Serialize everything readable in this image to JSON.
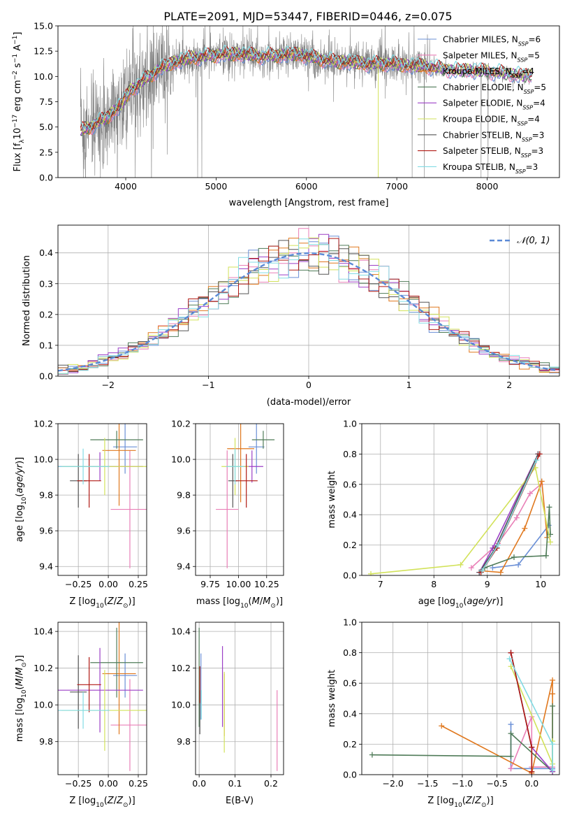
{
  "figure_title": "PLATE=2091, MJD=53447, FIBERID=0446, z=0.075",
  "colors": {
    "chabrier_miles": "#6a8fd6",
    "salpeter_miles": "#e97fb7",
    "kroupa_miles": "#e0781e",
    "chabrier_elodie": "#4f7b58",
    "salpeter_elodie": "#9b3fc6",
    "kroupa_elodie": "#d2e25a",
    "chabrier_stelib": "#555555",
    "salpeter_stelib": "#b11a14",
    "kroupa_stelib": "#82dbe4",
    "data": "#808080"
  },
  "chart_data": [
    {
      "id": "spectrum",
      "type": "line",
      "xlabel": "wavelength [Angstrom, rest frame]",
      "ylabel": "Flux [f_λ10^-17 erg cm^-2 s^-1 A^-1]",
      "xlim": [
        3250,
        8800
      ],
      "ylim": [
        0,
        15
      ],
      "xticks": [
        4000,
        5000,
        6000,
        7000,
        8000
      ],
      "yticks": [
        0.0,
        2.5,
        5.0,
        7.5,
        10.0,
        12.5,
        15.0
      ],
      "grid": false,
      "legend_position": "top-right",
      "series": [
        {
          "name": "Chabrier MILES, N_SSP=6",
          "key": "chabrier_miles"
        },
        {
          "name": "Salpeter MILES, N_SSP=5",
          "key": "salpeter_miles"
        },
        {
          "name": "Kroupa MILES, N_SSP=4",
          "key": "kroupa_miles"
        },
        {
          "name": "Chabrier ELODIE, N_SSP=5",
          "key": "chabrier_elodie"
        },
        {
          "name": "Salpeter ELODIE, N_SSP=4",
          "key": "salpeter_elodie"
        },
        {
          "name": "Kroupa ELODIE, N_SSP=4",
          "key": "kroupa_elodie"
        },
        {
          "name": "Chabrier STELIB, N_SSP=3",
          "key": "chabrier_stelib"
        },
        {
          "name": "Salpeter STELIB, N_SSP=3",
          "key": "salpeter_stelib"
        },
        {
          "name": "Kroupa STELIB, N_SSP=3",
          "key": "kroupa_stelib"
        }
      ],
      "model_curve": {
        "x": [
          3500,
          3650,
          3800,
          3950,
          4050,
          4200,
          4350,
          4500,
          4700,
          4900,
          5100,
          5300,
          5500,
          5700,
          5900,
          6100,
          6300,
          6500,
          6700,
          6900,
          7100,
          7300,
          7400,
          7600,
          7800,
          8000,
          8200,
          8500
        ],
        "y": [
          4.6,
          5.2,
          6.0,
          7.2,
          8.6,
          9.6,
          10.6,
          11.3,
          11.8,
          12.0,
          12.2,
          12.2,
          12.0,
          12.1,
          12.2,
          11.8,
          11.5,
          11.4,
          11.2,
          11.3,
          11.1,
          11.0,
          10.9,
          10.6,
          10.6,
          10.5,
          10.3,
          10.0
        ]
      }
    },
    {
      "id": "residuals",
      "type": "histogram",
      "xlabel": "(data-model)/error",
      "ylabel": "Normed distribution",
      "xlim": [
        -2.5,
        2.5
      ],
      "ylim": [
        0,
        0.49
      ],
      "xticks": [
        -2,
        -1,
        0,
        1,
        2
      ],
      "yticks": [
        0.0,
        0.1,
        0.2,
        0.3,
        0.4
      ],
      "grid": true,
      "legend_position": "top-right",
      "reference": {
        "name": "𝒩(0, 1)",
        "mean": 0,
        "sigma": 1
      },
      "bin_width": 0.1
    },
    {
      "id": "age_vs_Z",
      "type": "errorbar",
      "xlabel": "Z [log10(Z/Z⊙)]",
      "ylabel": "age [log10(age/yr)]",
      "xlim": [
        -0.42,
        0.32
      ],
      "ylim": [
        9.35,
        10.2
      ],
      "xticks": [
        -0.25,
        0.0,
        0.25
      ],
      "yticks": [
        9.4,
        9.6,
        9.8,
        10.0,
        10.2
      ],
      "points": [
        {
          "key": "chabrier_miles",
          "x": 0.14,
          "y": 10.07,
          "xerr": 0.1,
          "yerr": 0.15
        },
        {
          "key": "salpeter_miles",
          "x": 0.18,
          "y": 9.72,
          "xerr": 0.16,
          "yerr": 0.33
        },
        {
          "key": "kroupa_miles",
          "x": 0.09,
          "y": 10.05,
          "xerr": 0.14,
          "yerr": 0.31
        },
        {
          "key": "chabrier_elodie",
          "x": 0.07,
          "y": 10.11,
          "xerr": 0.22,
          "yerr": 0.05
        },
        {
          "key": "salpeter_elodie",
          "x": -0.07,
          "y": 9.96,
          "xerr": 0.36,
          "yerr": 0.08
        },
        {
          "key": "kroupa_elodie",
          "x": -0.03,
          "y": 9.96,
          "xerr": 0.36,
          "yerr": 0.16
        },
        {
          "key": "chabrier_stelib",
          "x": -0.25,
          "y": 9.88,
          "xerr": 0.07,
          "yerr": 0.15
        },
        {
          "key": "salpeter_stelib",
          "x": -0.16,
          "y": 9.88,
          "xerr": 0.1,
          "yerr": 0.15
        },
        {
          "key": "kroupa_stelib",
          "x": -0.21,
          "y": 9.96,
          "xerr": 0.22,
          "yerr": 0.1
        }
      ]
    },
    {
      "id": "age_vs_mass",
      "type": "errorbar",
      "xlabel": "mass [log10(M/M⊙)]",
      "ylabel": "",
      "xlim": [
        9.62,
        10.4
      ],
      "ylim": [
        9.35,
        10.2
      ],
      "xticks": [
        9.75,
        10.0,
        10.25
      ],
      "yticks": [
        9.4,
        9.6,
        9.8,
        10.0,
        10.2
      ],
      "points": [
        {
          "key": "chabrier_miles",
          "x": 10.16,
          "y": 10.07,
          "xerr": 0.07,
          "yerr": 0.15
        },
        {
          "key": "salpeter_miles",
          "x": 9.9,
          "y": 9.72,
          "xerr": 0.1,
          "yerr": 0.33
        },
        {
          "key": "kroupa_miles",
          "x": 10.02,
          "y": 10.06,
          "xerr": 0.12,
          "yerr": 0.3
        },
        {
          "key": "chabrier_elodie",
          "x": 10.22,
          "y": 10.11,
          "xerr": 0.1,
          "yerr": 0.05
        },
        {
          "key": "salpeter_elodie",
          "x": 10.12,
          "y": 9.96,
          "xerr": 0.1,
          "yerr": 0.09
        },
        {
          "key": "kroupa_elodie",
          "x": 9.97,
          "y": 9.96,
          "xerr": 0.12,
          "yerr": 0.16
        },
        {
          "key": "chabrier_stelib",
          "x": 9.95,
          "y": 9.88,
          "xerr": 0.04,
          "yerr": 0.15
        },
        {
          "key": "salpeter_stelib",
          "x": 10.07,
          "y": 9.88,
          "xerr": 0.1,
          "yerr": 0.15
        },
        {
          "key": "kroupa_stelib",
          "x": 9.97,
          "y": 9.96,
          "xerr": 0.08,
          "yerr": 0.1
        }
      ]
    },
    {
      "id": "mass_weight_vs_age",
      "type": "line",
      "xlabel": "age [log10(age/yr)]",
      "ylabel": "mass weight",
      "xlim": [
        6.65,
        10.35
      ],
      "ylim": [
        0,
        1
      ],
      "xticks": [
        7,
        8,
        9,
        10
      ],
      "yticks": [
        0.0,
        0.2,
        0.4,
        0.6,
        0.8,
        1.0
      ],
      "grid": true,
      "series": [
        {
          "key": "chabrier_miles",
          "x": [
            9.1,
            9.58,
            10.15
          ],
          "y": [
            0.05,
            0.07,
            0.33
          ]
        },
        {
          "key": "salpeter_miles",
          "x": [
            8.7,
            9.2,
            9.55,
            9.8,
            10.0
          ],
          "y": [
            0.05,
            0.21,
            0.38,
            0.54,
            0.6
          ]
        },
        {
          "key": "kroupa_miles",
          "x": [
            8.9,
            9.25,
            9.7,
            10.02,
            10.12
          ],
          "y": [
            0.03,
            0.02,
            0.31,
            0.62,
            0.25
          ]
        },
        {
          "key": "chabrier_elodie",
          "x": [
            8.95,
            9.5,
            10.1,
            10.16,
            10.18
          ],
          "y": [
            0.05,
            0.12,
            0.13,
            0.45,
            0.27
          ]
        },
        {
          "key": "salpeter_elodie",
          "x": [
            8.85,
            9.1,
            9.95
          ],
          "y": [
            0.02,
            0.18,
            0.8
          ]
        },
        {
          "key": "kroupa_elodie",
          "x": [
            6.82,
            8.5,
            9.9,
            10.18
          ],
          "y": [
            0.01,
            0.07,
            0.71,
            0.22
          ]
        },
        {
          "key": "chabrier_stelib",
          "x": [
            8.85,
            9.15,
            9.95
          ],
          "y": [
            0.02,
            0.18,
            0.8
          ]
        },
        {
          "key": "salpeter_stelib",
          "x": [
            8.88,
            9.18,
            9.98
          ],
          "y": [
            0.02,
            0.18,
            0.8
          ]
        },
        {
          "key": "kroupa_stelib",
          "x": [
            8.9,
            9.2,
            9.92
          ],
          "y": [
            0.03,
            0.2,
            0.76
          ]
        }
      ]
    },
    {
      "id": "mass_vs_Z",
      "type": "errorbar",
      "xlabel": "Z [log10(Z/Z⊙)]",
      "ylabel": "mass [log10(M/M⊙)]",
      "xlim": [
        -0.42,
        0.32
      ],
      "ylim": [
        9.62,
        10.45
      ],
      "xticks": [
        -0.25,
        0.0,
        0.25
      ],
      "yticks": [
        9.8,
        10.0,
        10.2,
        10.4
      ],
      "points": [
        {
          "key": "chabrier_miles",
          "x": 0.14,
          "y": 10.16,
          "xerr": 0.1,
          "yerr": 0.12
        },
        {
          "key": "salpeter_miles",
          "x": 0.18,
          "y": 9.89,
          "xerr": 0.16,
          "yerr": 0.25
        },
        {
          "key": "kroupa_miles",
          "x": 0.09,
          "y": 10.17,
          "xerr": 0.14,
          "yerr": 0.33
        },
        {
          "key": "chabrier_elodie",
          "x": 0.07,
          "y": 10.23,
          "xerr": 0.22,
          "yerr": 0.19
        },
        {
          "key": "salpeter_elodie",
          "x": -0.07,
          "y": 10.08,
          "xerr": 0.36,
          "yerr": 0.23
        },
        {
          "key": "kroupa_elodie",
          "x": -0.03,
          "y": 9.97,
          "xerr": 0.36,
          "yerr": 0.22
        },
        {
          "key": "chabrier_stelib",
          "x": -0.25,
          "y": 10.07,
          "xerr": 0.07,
          "yerr": 0.2
        },
        {
          "key": "salpeter_stelib",
          "x": -0.16,
          "y": 10.11,
          "xerr": 0.1,
          "yerr": 0.15
        },
        {
          "key": "kroupa_stelib",
          "x": -0.21,
          "y": 9.97,
          "xerr": 0.22,
          "yerr": 0.1
        }
      ]
    },
    {
      "id": "mass_vs_ebv",
      "type": "errorbar",
      "xlabel": "E(B-V)",
      "ylabel": "",
      "xlim": [
        -0.01,
        0.235
      ],
      "ylim": [
        9.62,
        10.45
      ],
      "xticks": [
        0.0,
        0.1,
        0.2
      ],
      "yticks": [
        9.8,
        10.0,
        10.2,
        10.4
      ],
      "points": [
        {
          "key": "chabrier_miles",
          "x": 0.005,
          "y": 10.1,
          "xerr": 0,
          "yerr": 0.18
        },
        {
          "key": "salpeter_miles",
          "x": 0.217,
          "y": 9.86,
          "xerr": 0,
          "yerr": 0.22
        },
        {
          "key": "kroupa_miles",
          "x": 0.07,
          "y": 10.0,
          "xerr": 0,
          "yerr": 0.17
        },
        {
          "key": "chabrier_elodie",
          "x": 0.0,
          "y": 10.15,
          "xerr": 0,
          "yerr": 0.27
        },
        {
          "key": "salpeter_elodie",
          "x": 0.065,
          "y": 10.1,
          "xerr": 0,
          "yerr": 0.22
        },
        {
          "key": "kroupa_elodie",
          "x": 0.07,
          "y": 9.96,
          "xerr": 0,
          "yerr": 0.22
        },
        {
          "key": "chabrier_stelib",
          "x": 0.002,
          "y": 9.96,
          "xerr": 0,
          "yerr": 0.12
        },
        {
          "key": "salpeter_stelib",
          "x": 0.002,
          "y": 10.11,
          "xerr": 0,
          "yerr": 0.1
        },
        {
          "key": "kroupa_stelib",
          "x": 0.006,
          "y": 10.0,
          "xerr": 0,
          "yerr": 0.08
        }
      ]
    },
    {
      "id": "mass_weight_vs_Z",
      "type": "line",
      "xlabel": "Z [log10(Z/Z⊙)]",
      "ylabel": "mass weight",
      "xlim": [
        -2.45,
        0.4
      ],
      "ylim": [
        0,
        1
      ],
      "xticks": [
        -2.0,
        -1.5,
        -1.0,
        -0.5,
        0.0
      ],
      "yticks": [
        0.0,
        0.2,
        0.4,
        0.6,
        0.8,
        1.0
      ],
      "grid": true,
      "series": [
        {
          "key": "chabrier_miles",
          "x": [
            -0.3,
            -0.3,
            0.3
          ],
          "y": [
            0.33,
            0.04,
            0.04
          ]
        },
        {
          "key": "salpeter_miles",
          "x": [
            -0.3,
            0.0,
            0.0,
            0.3
          ],
          "y": [
            0.04,
            0.38,
            0.05,
            0.05
          ]
        },
        {
          "key": "kroupa_miles",
          "x": [
            -1.3,
            0.0,
            0.3,
            0.3,
            0.3
          ],
          "y": [
            0.32,
            0.01,
            0.62,
            0.53,
            0.02
          ]
        },
        {
          "key": "chabrier_elodie",
          "x": [
            -2.3,
            -0.3,
            -0.3,
            0.3,
            0.3
          ],
          "y": [
            0.13,
            0.12,
            0.27,
            0.02,
            0.45
          ]
        },
        {
          "key": "salpeter_elodie",
          "x": [
            -0.3,
            0.0,
            0.3
          ],
          "y": [
            0.8,
            0.18,
            0.02
          ]
        },
        {
          "key": "kroupa_elodie",
          "x": [
            -0.3,
            0.3,
            0.3
          ],
          "y": [
            0.71,
            0.07,
            0.22
          ]
        },
        {
          "key": "chabrier_stelib",
          "x": [
            -0.3,
            0.0,
            0.0
          ],
          "y": [
            0.8,
            0.18,
            0.02
          ]
        },
        {
          "key": "salpeter_stelib",
          "x": [
            -0.3,
            0.0,
            0.0
          ],
          "y": [
            0.8,
            0.18,
            0.02
          ]
        },
        {
          "key": "kroupa_stelib",
          "x": [
            -0.32,
            0.3,
            0.3
          ],
          "y": [
            0.76,
            0.2,
            0.03
          ]
        }
      ]
    }
  ]
}
